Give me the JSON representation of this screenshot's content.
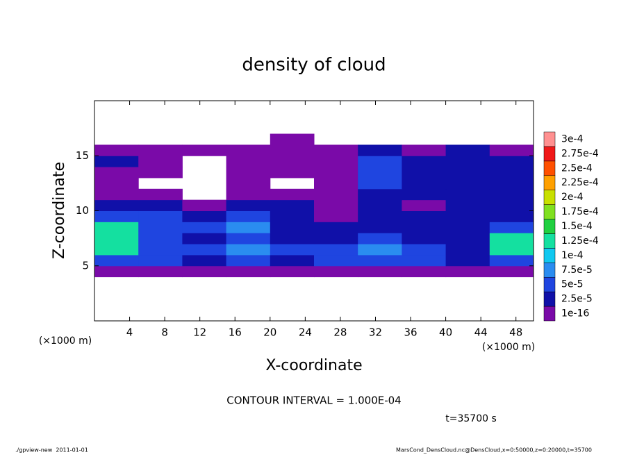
{
  "chart_data": {
    "type": "contour",
    "title": "density of cloud",
    "x_label": "X-coordinate",
    "y_label": "Z-coordinate",
    "x_unit": "(×1000 m)",
    "y_unit": "(×1000 m)",
    "xlim": [
      0,
      50
    ],
    "ylim": [
      0,
      20
    ],
    "xticks": [
      4,
      8,
      12,
      16,
      20,
      24,
      28,
      32,
      36,
      40,
      44,
      48
    ],
    "yticks": [
      5,
      10,
      15
    ],
    "x": [
      2.5,
      7.5,
      12.5,
      17.5,
      22.5,
      27.5,
      32.5,
      37.5,
      42.5,
      47.5
    ],
    "y": [
      4.5,
      5.5,
      6.5,
      7.5,
      8.5,
      9.5,
      10.5,
      11.5,
      12.5,
      13.5,
      14.5,
      15.5,
      16.5
    ],
    "z": [
      [
        1e-16,
        1e-16,
        1e-16,
        1e-16,
        1e-16,
        1e-16,
        1e-16,
        1e-16,
        1e-16,
        1e-16
      ],
      [
        5e-05,
        5e-05,
        2.5e-05,
        5e-05,
        2.5e-05,
        5e-05,
        5e-05,
        5e-05,
        2.5e-05,
        5e-05
      ],
      [
        0.000125,
        5e-05,
        5e-05,
        7.5e-05,
        5e-05,
        5e-05,
        7.5e-05,
        5e-05,
        2.5e-05,
        0.000125
      ],
      [
        0.000125,
        5e-05,
        2.5e-05,
        5e-05,
        2.5e-05,
        2.5e-05,
        5e-05,
        2.5e-05,
        2.5e-05,
        0.000125
      ],
      [
        0.000125,
        5e-05,
        5e-05,
        7.5e-05,
        2.5e-05,
        2.5e-05,
        2.5e-05,
        2.5e-05,
        2.5e-05,
        5e-05
      ],
      [
        5e-05,
        5e-05,
        2.5e-05,
        5e-05,
        2.5e-05,
        1e-16,
        2.5e-05,
        2.5e-05,
        2.5e-05,
        2.5e-05
      ],
      [
        2.5e-05,
        2.5e-05,
        1e-16,
        2.5e-05,
        2.5e-05,
        1e-16,
        2.5e-05,
        1e-16,
        2.5e-05,
        2.5e-05
      ],
      [
        1e-16,
        1e-16,
        null,
        1e-16,
        1e-16,
        1e-16,
        2.5e-05,
        2.5e-05,
        2.5e-05,
        2.5e-05
      ],
      [
        1e-16,
        null,
        null,
        1e-16,
        null,
        1e-16,
        5e-05,
        2.5e-05,
        2.5e-05,
        2.5e-05
      ],
      [
        1e-16,
        1e-16,
        null,
        1e-16,
        1e-16,
        1e-16,
        5e-05,
        2.5e-05,
        2.5e-05,
        2.5e-05
      ],
      [
        2.5e-05,
        1e-16,
        null,
        1e-16,
        1e-16,
        1e-16,
        5e-05,
        2.5e-05,
        2.5e-05,
        2.5e-05
      ],
      [
        1e-16,
        1e-16,
        1e-16,
        1e-16,
        1e-16,
        1e-16,
        2.5e-05,
        1e-16,
        2.5e-05,
        1e-16
      ],
      [
        null,
        null,
        null,
        null,
        1e-16,
        null,
        null,
        null,
        null,
        null
      ]
    ],
    "levels": [
      {
        "value": 1e-16,
        "label": "1e-16"
      },
      {
        "value": 2.5e-05,
        "label": "2.5e-5"
      },
      {
        "value": 5e-05,
        "label": "5e-5"
      },
      {
        "value": 7.5e-05,
        "label": "7.5e-5"
      },
      {
        "value": 0.0001,
        "label": "1e-4"
      },
      {
        "value": 0.000125,
        "label": "1.25e-4"
      },
      {
        "value": 0.00015,
        "label": "1.5e-4"
      },
      {
        "value": 0.000175,
        "label": "1.75e-4"
      },
      {
        "value": 0.0002,
        "label": "2e-4"
      },
      {
        "value": 0.000225,
        "label": "2.25e-4"
      },
      {
        "value": 0.00025,
        "label": "2.5e-4"
      },
      {
        "value": 0.000275,
        "label": "2.75e-4"
      },
      {
        "value": 0.0003,
        "label": "3e-4"
      }
    ],
    "colors": [
      "#7a0aa8",
      "#1010a8",
      "#1f45e0",
      "#2a8cf0",
      "#10c8f0",
      "#14e0a0",
      "#20d040",
      "#80e020",
      "#c8e000",
      "#ffa000",
      "#ff5000",
      "#f01818",
      "#ff9090"
    ],
    "contour_interval": "CONTOUR INTERVAL = 1.000E-04",
    "time": "t=35700 s",
    "footer_left": "./gpview-new  2011-01-01",
    "footer_right": "MarsCond_DensCloud.nc@DensCloud,x=0:50000,z=0:20000,t=35700"
  }
}
